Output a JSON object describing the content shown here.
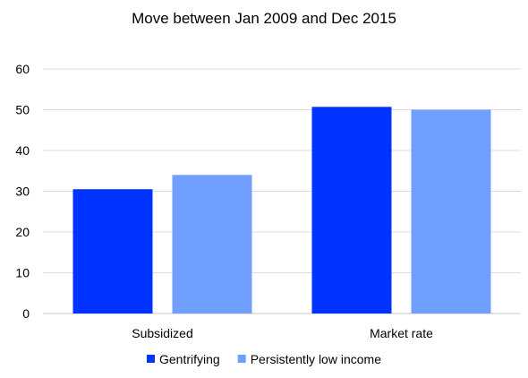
{
  "chart_data": {
    "type": "bar",
    "title": "Move between Jan 2009 and Dec 2015",
    "categories": [
      "Subsidized",
      "Market rate"
    ],
    "series": [
      {
        "name": "Gentrifying",
        "color": "#0033ff",
        "values": [
          30.5,
          50.7
        ]
      },
      {
        "name": "Persistently low income",
        "color": "#709fff",
        "values": [
          34.0,
          50.0
        ]
      }
    ],
    "ylim": [
      0,
      60
    ],
    "yticks": [
      0,
      10,
      20,
      30,
      40,
      50,
      60
    ],
    "grid": true,
    "legend": "bottom"
  }
}
